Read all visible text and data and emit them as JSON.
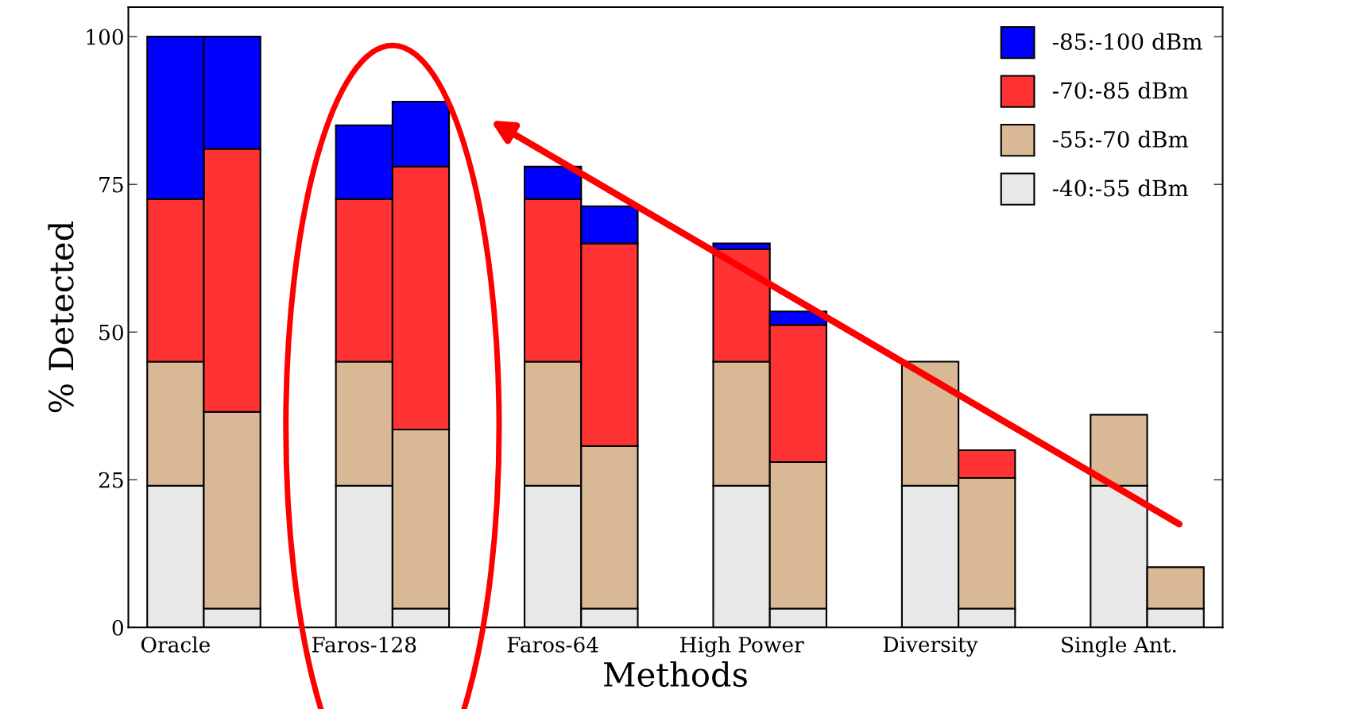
{
  "chart_data": {
    "type": "bar",
    "stacked": true,
    "xlabel": "Methods",
    "ylabel": "% Detected",
    "categories": [
      "Oracle",
      null,
      "Faros-128",
      null,
      "Faros-64",
      null,
      "High Power",
      null,
      "Diversity",
      null,
      "Single Ant.",
      null
    ],
    "series": [
      {
        "name": "-40:-55 dBm",
        "color": "#e8e8e8",
        "values": [
          24,
          3.2,
          24,
          3.2,
          24,
          3.2,
          24,
          3.2,
          24,
          3.2,
          24,
          3.2
        ]
      },
      {
        "name": "-55:-70 dBm",
        "color": "#d9b896",
        "values": [
          21,
          33.3,
          21,
          30.3,
          21,
          27.5,
          21,
          24.8,
          21,
          22.1,
          12,
          7
        ]
      },
      {
        "name": "-70:-85 dBm",
        "color": "#ff3333",
        "values": [
          27.5,
          44.5,
          27.5,
          44.5,
          27.5,
          34.3,
          19,
          23.2,
          null,
          4.7,
          null,
          null
        ]
      },
      {
        "name": "-85:-100 dBm",
        "color": "#0000ff",
        "values": [
          27.5,
          19,
          12.5,
          11,
          5.5,
          6.3,
          1,
          2.3,
          null,
          null,
          null,
          null
        ]
      }
    ],
    "ylim": [
      0,
      105
    ],
    "yticks": [
      0,
      25,
      50,
      75,
      100
    ],
    "legend": "top right"
  }
}
